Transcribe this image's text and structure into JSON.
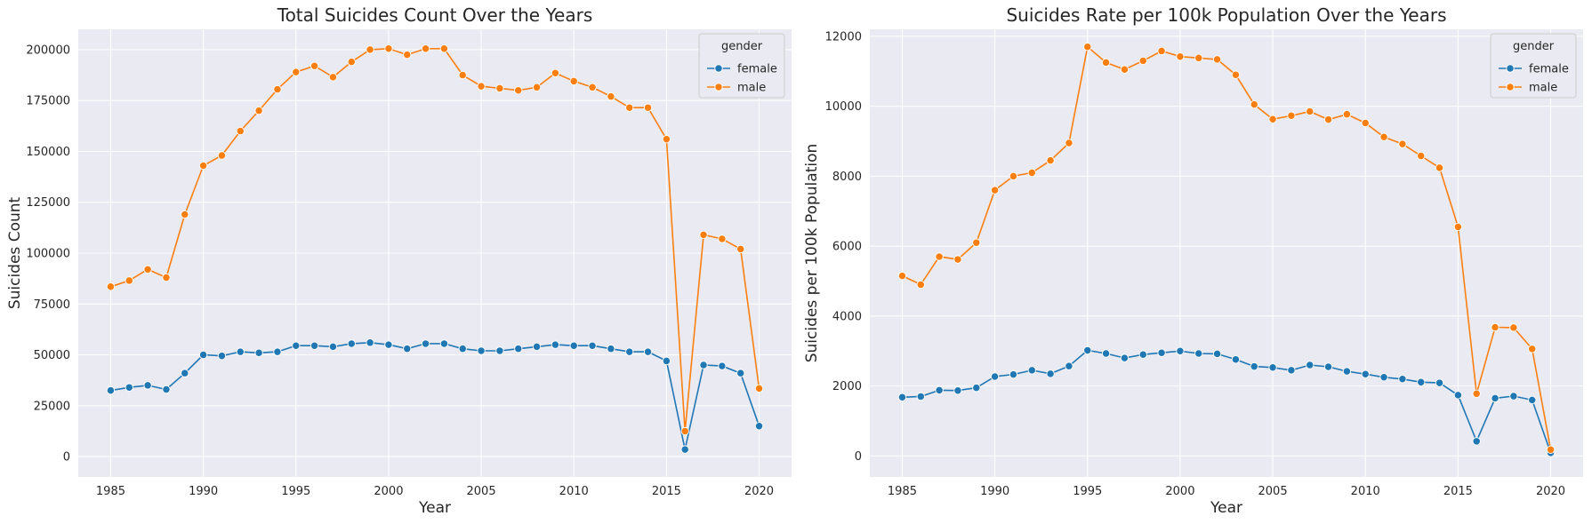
{
  "chart_data": [
    {
      "type": "line",
      "title": "Total Suicides Count Over the Years",
      "xlabel": "Year",
      "ylabel": "Suicides Count",
      "xlim": [
        1983.25,
        2021.75
      ],
      "ylim": [
        -10000,
        210000
      ],
      "xticks": [
        1985,
        1990,
        1995,
        2000,
        2005,
        2010,
        2015,
        2020
      ],
      "yticks": [
        0,
        25000,
        50000,
        75000,
        100000,
        125000,
        150000,
        175000,
        200000
      ],
      "grid": true,
      "legend": {
        "title": "gender",
        "placement": "top-right"
      },
      "x": [
        1985,
        1986,
        1987,
        1988,
        1989,
        1990,
        1991,
        1992,
        1993,
        1994,
        1995,
        1996,
        1997,
        1998,
        1999,
        2000,
        2001,
        2002,
        2003,
        2004,
        2005,
        2006,
        2007,
        2008,
        2009,
        2010,
        2011,
        2012,
        2013,
        2014,
        2015,
        2016,
        2017,
        2018,
        2019,
        2020
      ],
      "series": [
        {
          "name": "female",
          "color": "#1f77b4",
          "values": [
            32500,
            34000,
            35000,
            33000,
            41000,
            50000,
            49500,
            51500,
            51000,
            51500,
            54500,
            54500,
            54000,
            55500,
            56000,
            55000,
            53000,
            55500,
            55500,
            53000,
            52000,
            52000,
            53000,
            54000,
            55000,
            54500,
            54500,
            53000,
            51500,
            51500,
            47000,
            3500,
            45000,
            44500,
            41000,
            15000
          ]
        },
        {
          "name": "male",
          "color": "#ff7f0e",
          "values": [
            83500,
            86500,
            92000,
            88000,
            119000,
            143000,
            148000,
            160000,
            170000,
            180500,
            189000,
            192000,
            186500,
            194000,
            200000,
            200500,
            197500,
            200500,
            200500,
            187500,
            182000,
            181000,
            180000,
            181500,
            188500,
            184500,
            181500,
            177000,
            171500,
            171500,
            156000,
            12500,
            109000,
            107000,
            102000,
            33500
          ]
        }
      ]
    },
    {
      "type": "line",
      "title": "Suicides Rate per 100k Population Over the Years",
      "xlabel": "Year",
      "ylabel": "Suicides per 100k Population",
      "xlim": [
        1983.25,
        2021.75
      ],
      "ylim": [
        -600,
        12200
      ],
      "xticks": [
        1985,
        1990,
        1995,
        2000,
        2005,
        2010,
        2015,
        2020
      ],
      "yticks": [
        0,
        2000,
        4000,
        6000,
        8000,
        10000,
        12000
      ],
      "grid": true,
      "legend": {
        "title": "gender",
        "placement": "top-right"
      },
      "x": [
        1985,
        1986,
        1987,
        1988,
        1989,
        1990,
        1991,
        1992,
        1993,
        1994,
        1995,
        1996,
        1997,
        1998,
        1999,
        2000,
        2001,
        2002,
        2003,
        2004,
        2005,
        2006,
        2007,
        2008,
        2009,
        2010,
        2011,
        2012,
        2013,
        2014,
        2015,
        2016,
        2017,
        2018,
        2019,
        2020
      ],
      "series": [
        {
          "name": "female",
          "color": "#1f77b4",
          "values": [
            1680,
            1700,
            1880,
            1870,
            1950,
            2270,
            2330,
            2450,
            2350,
            2570,
            3020,
            2930,
            2800,
            2900,
            2950,
            3000,
            2930,
            2920,
            2760,
            2560,
            2530,
            2450,
            2600,
            2550,
            2420,
            2340,
            2250,
            2200,
            2110,
            2090,
            1740,
            420,
            1650,
            1710,
            1600,
            90
          ]
        },
        {
          "name": "male",
          "color": "#ff7f0e",
          "values": [
            5150,
            4900,
            5700,
            5620,
            6100,
            7600,
            8000,
            8100,
            8450,
            8950,
            11700,
            11250,
            11050,
            11300,
            11580,
            11420,
            11380,
            11340,
            10900,
            10050,
            9630,
            9730,
            9850,
            9620,
            9770,
            9520,
            9120,
            8920,
            8580,
            8240,
            6550,
            1780,
            3680,
            3670,
            3060,
            180
          ]
        }
      ]
    }
  ]
}
